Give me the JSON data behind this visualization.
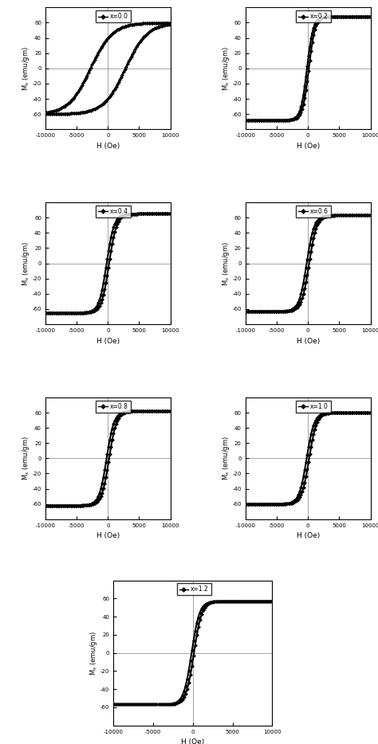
{
  "subplots": [
    {
      "label": "x=0.0",
      "Hc": 2800,
      "Ms": 60,
      "scale": 0.35,
      "is_wide": true
    },
    {
      "label": "x=0.2",
      "Hc": 150,
      "Ms": 68,
      "scale": 0.1,
      "is_wide": false
    },
    {
      "label": "x=0.4",
      "Hc": 200,
      "Ms": 65,
      "scale": 0.12,
      "is_wide": false
    },
    {
      "label": "x=0.6",
      "Hc": 200,
      "Ms": 63,
      "scale": 0.12,
      "is_wide": false
    },
    {
      "label": "x=0.8",
      "Hc": 200,
      "Ms": 62,
      "scale": 0.12,
      "is_wide": false
    },
    {
      "label": "x=1.0",
      "Hc": 200,
      "Ms": 60,
      "scale": 0.12,
      "is_wide": false
    },
    {
      "label": "x=1.2",
      "Hc": 150,
      "Ms": 57,
      "scale": 0.1,
      "is_wide": false
    }
  ],
  "xlim": [
    -10000,
    10000
  ],
  "ylim": [
    -80,
    80
  ],
  "xticks": [
    -10000,
    -5000,
    0,
    5000,
    10000
  ],
  "yticks": [
    -60,
    -40,
    -20,
    0,
    20,
    40,
    60
  ],
  "xlabel": "H (Oe)",
  "ylabel": "M$_s$ (emu/gm)",
  "linewidth": 1.5,
  "markersize": 2.5,
  "n_pts": 400,
  "n_markers": 100
}
